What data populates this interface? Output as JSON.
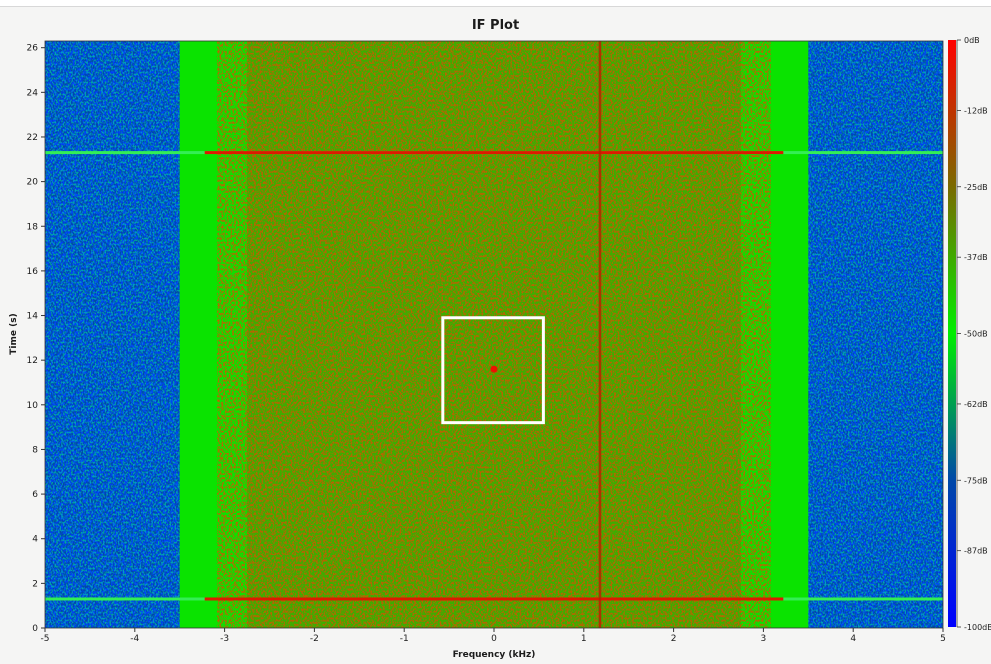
{
  "chart_data": {
    "type": "heatmap",
    "title": "IF Plot",
    "xlabel": "Frequency (kHz)",
    "ylabel": "Time (s)",
    "xlim": [
      -5,
      5
    ],
    "ylim": [
      0,
      26.3
    ],
    "xticks": [
      "-5",
      "-4",
      "-3",
      "-2",
      "-1",
      "0",
      "1",
      "2",
      "3",
      "4",
      "5"
    ],
    "yticks": [
      "0",
      "2",
      "4",
      "6",
      "8",
      "10",
      "12",
      "14",
      "16",
      "18",
      "20",
      "22",
      "24",
      "26"
    ],
    "colorbar": {
      "min_db": -100,
      "max_db": 0,
      "labels": [
        "0dB",
        "-12dB",
        "-25dB",
        "-37dB",
        "-50dB",
        "-62dB",
        "-75dB",
        "-87dB",
        "-100dB"
      ],
      "colors": [
        "#ff0000",
        "#7a6a00",
        "#00ee00",
        "#0048a8",
        "#0000ff"
      ]
    },
    "signal_region_khz": [
      -3.5,
      3.5
    ],
    "noise_floor_db": -75,
    "band_edge_db": -48,
    "center_band_db": -38,
    "horizontal_lines_s": [
      1.3,
      21.3
    ],
    "vertical_line_khz": 1.18,
    "marker": {
      "freq_khz": 0.0,
      "time_s": 11.6
    },
    "highlight_box": {
      "freq_khz": [
        -0.57,
        0.55
      ],
      "time_s": [
        9.2,
        13.9
      ]
    },
    "grid": false,
    "colorbar_position": "right"
  }
}
